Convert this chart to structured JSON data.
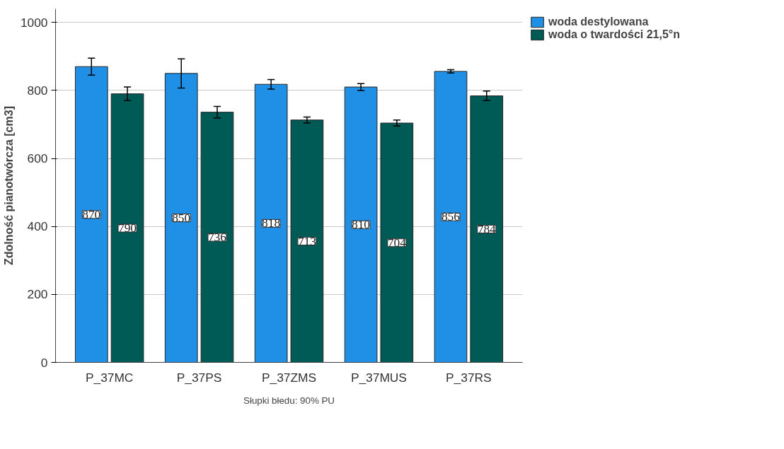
{
  "chart_data": {
    "type": "bar",
    "ylabel": "Zdolność pianotwórcza [cm3]",
    "categories": [
      "P_37MC",
      "P_37PS",
      "P_37ZMS",
      "P_37MUS",
      "P_37RS"
    ],
    "series": [
      {
        "name": "woda destylowana",
        "color": "#1f90e6",
        "values": [
          870,
          850,
          818,
          810,
          856
        ],
        "errors": [
          25,
          43,
          14,
          10,
          5
        ]
      },
      {
        "name": "woda o twardości 21,5°n",
        "color": "#005a56",
        "values": [
          790,
          736,
          713,
          704,
          784
        ],
        "errors": [
          20,
          17,
          9,
          9,
          14
        ]
      }
    ],
    "ylim": [
      0,
      1040
    ],
    "yticks": [
      0,
      200,
      400,
      600,
      800,
      1000
    ],
    "grid": "y",
    "legend": "right",
    "data_labels": true,
    "annotations": [
      "Słupki błedu: 90% PU"
    ]
  }
}
